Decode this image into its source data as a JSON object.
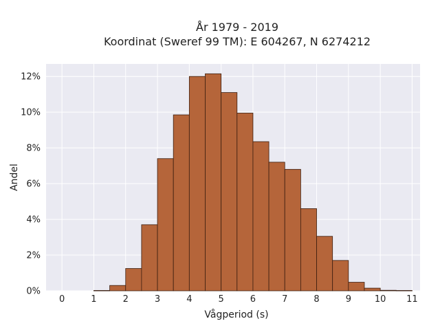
{
  "chart_data": {
    "type": "bar",
    "title_lines": [
      "År 1979 - 2019",
      "Koordinat (Sweref 99 TM): E 604267, N 6274212"
    ],
    "xlabel": "Vågperiod (s)",
    "ylabel": "Andel",
    "x_ticks": [
      "0",
      "1",
      "2",
      "3",
      "4",
      "5",
      "6",
      "7",
      "8",
      "9",
      "10",
      "11"
    ],
    "y_ticks": [
      "0%",
      "2%",
      "4%",
      "6%",
      "8%",
      "10%",
      "12%"
    ],
    "xlim": [
      -0.5,
      11.25
    ],
    "ylim": [
      0,
      12.7
    ],
    "bin_width": 0.5,
    "bin_starts": [
      1.0,
      1.5,
      2.0,
      2.5,
      3.0,
      3.5,
      4.0,
      4.5,
      5.0,
      5.5,
      6.0,
      6.5,
      7.0,
      7.5,
      8.0,
      8.5,
      9.0,
      9.5,
      10.0,
      10.5
    ],
    "values": [
      0.02,
      0.3,
      1.25,
      3.7,
      7.4,
      9.85,
      12.0,
      12.15,
      11.1,
      9.95,
      8.35,
      7.2,
      6.8,
      4.6,
      3.05,
      1.7,
      0.48,
      0.15,
      0.03,
      0.02
    ],
    "grid": true,
    "colors": {
      "bar_fill": "#b5653a",
      "bar_edge": "#3b1e10",
      "plot_background": "#eaeaf2",
      "grid": "#ffffff"
    }
  }
}
